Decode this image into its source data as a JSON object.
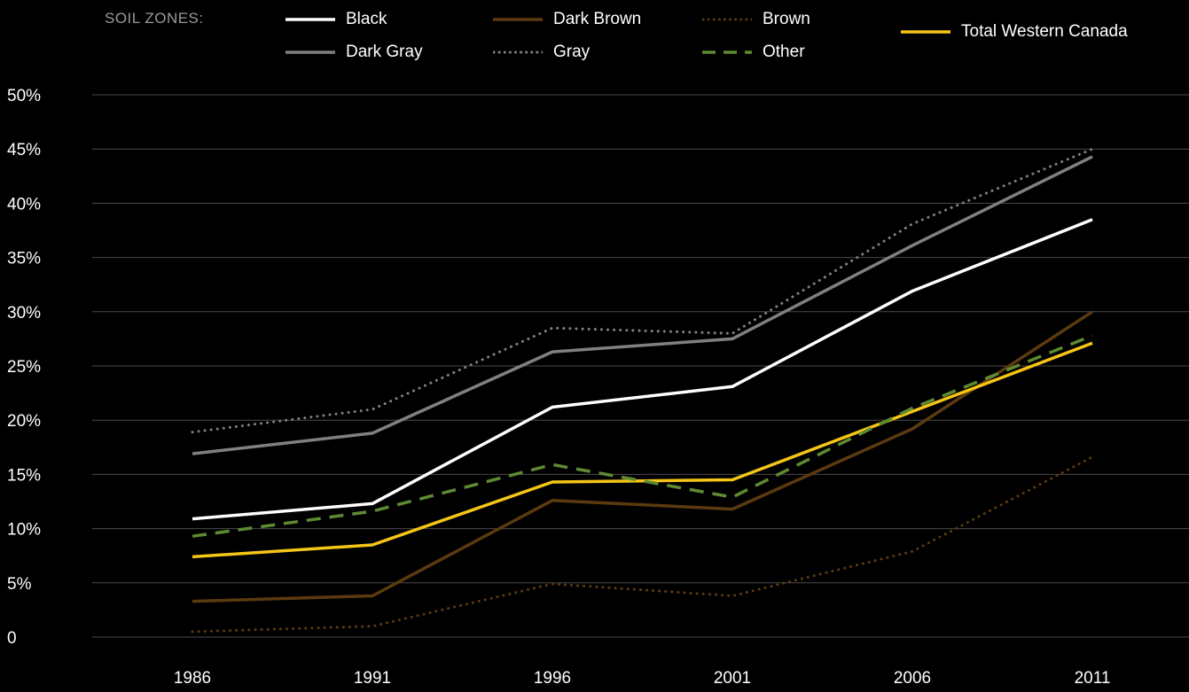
{
  "chart_data": {
    "type": "line",
    "legend_title": "SOIL ZONES:",
    "x": [
      "1986",
      "1991",
      "1996",
      "2001",
      "2006",
      "2011"
    ],
    "y_ticks": [
      "0",
      "5%",
      "10%",
      "15%",
      "20%",
      "25%",
      "30%",
      "35%",
      "40%",
      "45%",
      "50%"
    ],
    "ylim": [
      0,
      50
    ],
    "grid": "horizontal",
    "legend_placement": "top",
    "series": [
      {
        "name": "Black",
        "color": "#ffffff",
        "style": "solid",
        "values": [
          10.9,
          12.3,
          21.2,
          23.1,
          31.9,
          38.5
        ]
      },
      {
        "name": "Dark Brown",
        "color": "#5c3a10",
        "style": "solid",
        "values": [
          3.3,
          3.8,
          12.6,
          11.8,
          19.2,
          30.0
        ]
      },
      {
        "name": "Brown",
        "color": "#5c3a10",
        "style": "dotted",
        "values": [
          0.5,
          1.0,
          4.9,
          3.8,
          7.9,
          16.6
        ]
      },
      {
        "name": "Dark Gray",
        "color": "#808080",
        "style": "solid",
        "values": [
          16.9,
          18.8,
          26.3,
          27.5,
          36.1,
          44.3
        ]
      },
      {
        "name": "Gray",
        "color": "#808080",
        "style": "dotted",
        "values": [
          18.9,
          21.0,
          28.5,
          28.0,
          38.1,
          45.0
        ]
      },
      {
        "name": "Other",
        "color": "#5e8a32",
        "style": "dashed",
        "values": [
          9.3,
          11.6,
          15.9,
          12.9,
          21.1,
          27.8
        ]
      },
      {
        "name": "Total Western Canada",
        "color": "#f5c518",
        "style": "solid",
        "values": [
          7.4,
          8.5,
          14.3,
          14.5,
          20.8,
          27.1
        ]
      }
    ]
  }
}
